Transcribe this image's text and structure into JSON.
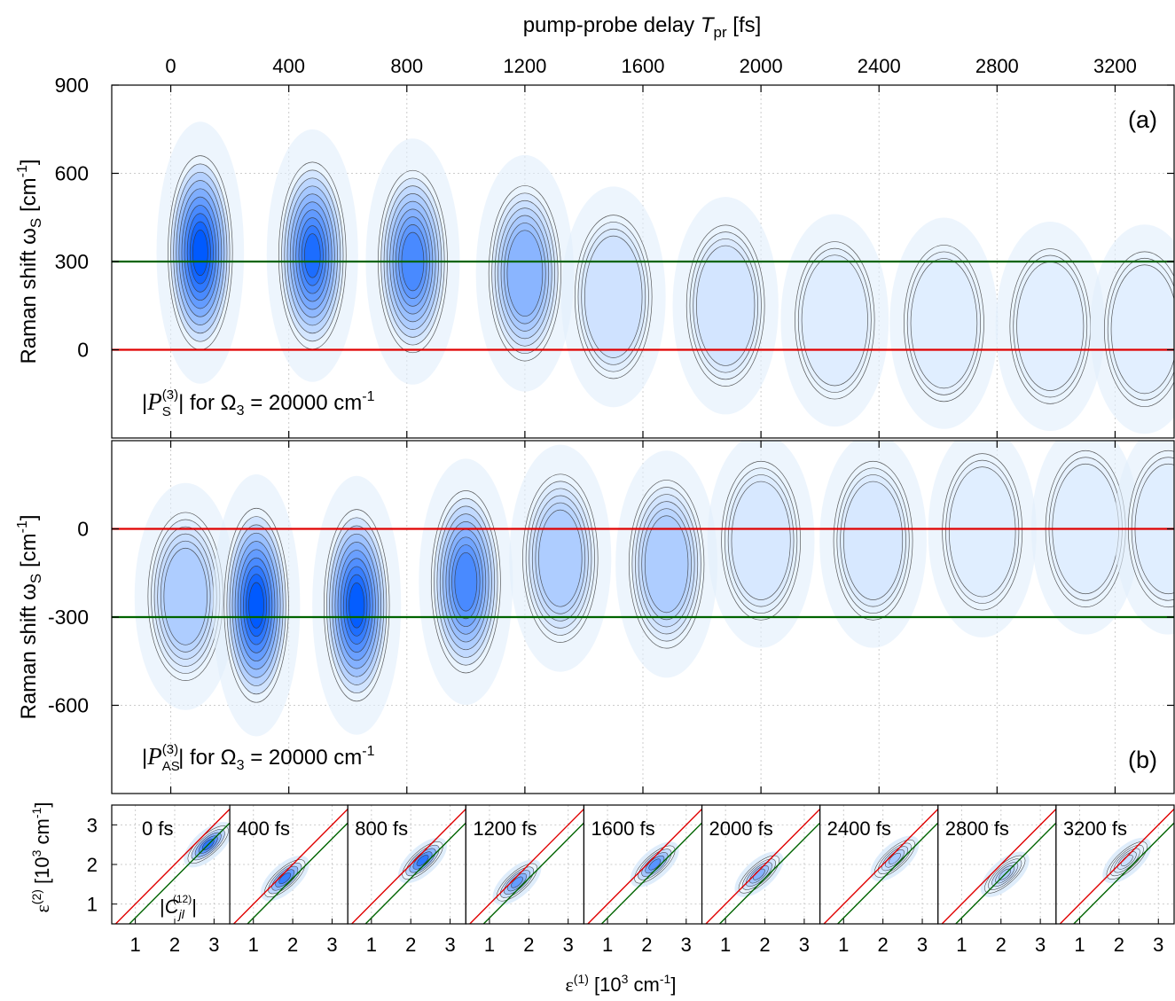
{
  "chart_data": [
    {
      "type": "heatmap",
      "panel": "(a)",
      "top_axis_label": "pump-probe delay",
      "top_axis_symbol": "T",
      "top_axis_symbol_sub": "pr",
      "top_axis_unit": "[fs]",
      "xlim": [
        -200,
        3400
      ],
      "x_ticks": [
        0,
        400,
        800,
        1200,
        1600,
        2000,
        2400,
        2800,
        3200
      ],
      "ylim": [
        -300,
        900
      ],
      "y_ticks": [
        900,
        600,
        300,
        0
      ],
      "ylabel_main": "Raman shift ω",
      "ylabel_sub": "S",
      "ylabel_unit": "[cm",
      "ylabel_unit_exp": "-1",
      "annotation": {
        "pre": "|",
        "sym": "P",
        "sub": "S",
        "sup": "(3)",
        "post": "|  for  Ω",
        "post_sub": "3",
        "value": " = 20000 cm",
        "value_exp": "-1"
      },
      "hlines": [
        {
          "y": 300,
          "color": "#006400"
        },
        {
          "y": 0,
          "color": "#e00000"
        }
      ],
      "peaks": [
        {
          "x": 100,
          "y": 330,
          "amp": 1.0
        },
        {
          "x": 480,
          "y": 320,
          "amp": 0.85
        },
        {
          "x": 820,
          "y": 300,
          "amp": 0.75
        },
        {
          "x": 1200,
          "y": 260,
          "amp": 0.6
        },
        {
          "x": 1500,
          "y": 180,
          "amp": 0.35
        },
        {
          "x": 1880,
          "y": 150,
          "amp": 0.3
        },
        {
          "x": 2250,
          "y": 100,
          "amp": 0.22
        },
        {
          "x": 2620,
          "y": 90,
          "amp": 0.2
        },
        {
          "x": 2980,
          "y": 80,
          "amp": 0.17
        },
        {
          "x": 3300,
          "y": 70,
          "amp": 0.17
        }
      ]
    },
    {
      "type": "heatmap",
      "panel": "(b)",
      "xlim": [
        -200,
        3400
      ],
      "ylim": [
        -900,
        300
      ],
      "y_ticks": [
        0,
        -300,
        -600
      ],
      "ylabel_main": "Raman shift ω",
      "ylabel_sub": "S",
      "ylabel_unit": "[cm",
      "ylabel_unit_exp": "-1",
      "annotation": {
        "pre": "|",
        "sym": "P",
        "sub": "AS",
        "sup": "(3)",
        "post": "|  for  Ω",
        "post_sub": "3",
        "value": " = 20000 cm",
        "value_exp": "-1"
      },
      "hlines": [
        {
          "y": 0,
          "color": "#e00000"
        },
        {
          "y": -300,
          "color": "#006400"
        }
      ],
      "peaks": [
        {
          "x": 50,
          "y": -230,
          "amp": 0.45
        },
        {
          "x": 290,
          "y": -260,
          "amp": 1.0
        },
        {
          "x": 630,
          "y": -260,
          "amp": 0.95
        },
        {
          "x": 1000,
          "y": -180,
          "amp": 0.75
        },
        {
          "x": 1320,
          "y": -100,
          "amp": 0.45
        },
        {
          "x": 1680,
          "y": -120,
          "amp": 0.45
        },
        {
          "x": 2000,
          "y": -40,
          "amp": 0.25
        },
        {
          "x": 2380,
          "y": -40,
          "amp": 0.25
        },
        {
          "x": 2750,
          "y": -10,
          "amp": 0.2
        },
        {
          "x": 3100,
          "y": 0,
          "amp": 0.2
        },
        {
          "x": 3380,
          "y": 0,
          "amp": 0.2
        }
      ]
    },
    {
      "type": "heatmap",
      "panel": "small-multiples",
      "xlim": [
        0.4,
        3.4
      ],
      "ylim": [
        0.5,
        3.5
      ],
      "x_ticks": [
        1,
        2,
        3
      ],
      "y_ticks": [
        3,
        2,
        1
      ],
      "ylabel": "ε",
      "ylabel_sup": "(2)",
      "ylabel_unit": "[10",
      "ylabel_unit_exp": "3",
      "ylabel_unit_tail": " cm",
      "ylabel_unit_tail_exp": "-1",
      "xlabel": "ε",
      "xlabel_sup": "(1)",
      "xlabel_unit": "[10",
      "xlabel_unit_exp": "3",
      "xlabel_unit_tail": " cm",
      "xlabel_unit_tail_exp": "-1",
      "inset_label": {
        "sym": "C",
        "sub": "jl",
        "sup": "(12)"
      },
      "diag_lines": [
        {
          "offset": 0,
          "color": "#e00000"
        },
        {
          "offset": -0.35,
          "color": "#006400"
        }
      ],
      "panels": [
        {
          "label": "0 fs",
          "cx": 2.85,
          "cy": 2.5,
          "amp": 0.85
        },
        {
          "label": "400 fs",
          "cx": 1.8,
          "cy": 1.65,
          "amp": 0.8
        },
        {
          "label": "800 fs",
          "cx": 2.3,
          "cy": 2.1,
          "amp": 0.85
        },
        {
          "label": "1200 fs",
          "cx": 1.7,
          "cy": 1.55,
          "amp": 0.6
        },
        {
          "label": "1600 fs",
          "cx": 2.2,
          "cy": 2.0,
          "amp": 0.65
        },
        {
          "label": "2000 fs",
          "cx": 1.85,
          "cy": 1.75,
          "amp": 0.45
        },
        {
          "label": "2400 fs",
          "cx": 2.3,
          "cy": 2.15,
          "amp": 0.3
        },
        {
          "label": "2800 fs",
          "cx": 2.1,
          "cy": 1.75,
          "amp": 0.28
        },
        {
          "label": "3200 fs",
          "cx": 2.2,
          "cy": 2.1,
          "amp": 0.15
        }
      ]
    }
  ]
}
